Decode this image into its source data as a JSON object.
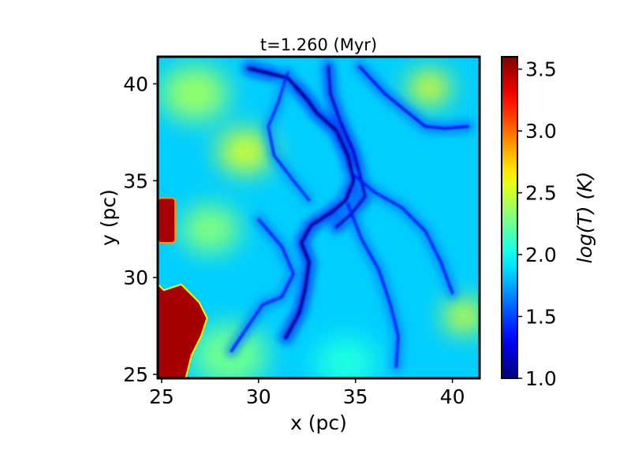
{
  "chart_data": {
    "type": "heatmap",
    "title": "t=1.260 (Myr)",
    "xlabel": "x (pc)",
    "ylabel": "y (pc)",
    "xlim": [
      24.8,
      41.4
    ],
    "ylim": [
      24.8,
      41.4
    ],
    "x_ticks": [
      25,
      30,
      35,
      40
    ],
    "y_ticks": [
      25,
      30,
      35,
      40
    ],
    "colorbar": {
      "label": "log(T) (K)",
      "range": [
        1.0,
        3.6
      ],
      "ticks": [
        1.0,
        1.5,
        2.0,
        2.5,
        3.0,
        3.5
      ],
      "tick_labels": [
        "1.0",
        "1.5",
        "2.0",
        "2.5",
        "3.0",
        "3.5"
      ],
      "colormap": "jet"
    },
    "features": {
      "background_log_t": 1.85,
      "hot_region": {
        "log_t": 3.5,
        "x": [
          24.8,
          27.3
        ],
        "y": [
          24.8,
          29.6
        ]
      },
      "hot_edge": {
        "log_t": 3.5,
        "x": [
          24.8,
          25.7
        ],
        "y": [
          31.8,
          34.1
        ]
      },
      "warm_patches": [
        {
          "x": 29.3,
          "y": 36.5,
          "r": 1.3,
          "log_t": 2.5
        },
        {
          "x": 26.7,
          "y": 39.5,
          "r": 1.6,
          "log_t": 2.35
        },
        {
          "x": 38.8,
          "y": 39.8,
          "r": 1.0,
          "log_t": 2.55
        },
        {
          "x": 40.6,
          "y": 28.0,
          "r": 1.0,
          "log_t": 2.5
        },
        {
          "x": 27.5,
          "y": 32.5,
          "r": 1.4,
          "log_t": 2.3
        },
        {
          "x": 28.5,
          "y": 26.0,
          "r": 1.8,
          "log_t": 2.25
        },
        {
          "x": 34.5,
          "y": 25.6,
          "r": 1.5,
          "log_t": 2.05
        }
      ],
      "filaments": [
        {
          "log_t": 1.05,
          "points": [
            [
              29.5,
              40.8
            ],
            [
              31.5,
              40.3
            ],
            [
              32.5,
              39.2
            ],
            [
              33.0,
              38.5
            ],
            [
              34.0,
              37.6
            ],
            [
              34.6,
              36.3
            ],
            [
              34.9,
              35.0
            ],
            [
              34.5,
              34.0
            ],
            [
              33.8,
              33.4
            ],
            [
              32.7,
              32.7
            ],
            [
              32.2,
              31.8
            ],
            [
              32.6,
              30.8
            ],
            [
              32.4,
              29.4
            ],
            [
              32.1,
              28.2
            ],
            [
              31.4,
              26.9
            ]
          ]
        },
        {
          "log_t": 1.15,
          "points": [
            [
              33.6,
              40.9
            ],
            [
              33.7,
              39.5
            ],
            [
              34.2,
              38.1
            ],
            [
              34.9,
              36.5
            ],
            [
              35.2,
              35.4
            ],
            [
              35.5,
              34.2
            ],
            [
              34.8,
              33.3
            ],
            [
              34.0,
              32.6
            ]
          ]
        },
        {
          "log_t": 1.3,
          "points": [
            [
              35.2,
              40.9
            ],
            [
              36.5,
              39.5
            ],
            [
              37.6,
              38.6
            ],
            [
              38.6,
              37.8
            ],
            [
              39.6,
              37.7
            ],
            [
              40.8,
              37.8
            ]
          ]
        },
        {
          "log_t": 1.35,
          "points": [
            [
              30.0,
              33.0
            ],
            [
              31.2,
              31.6
            ],
            [
              31.8,
              30.2
            ],
            [
              31.2,
              29.0
            ],
            [
              30.2,
              28.6
            ],
            [
              29.4,
              27.4
            ],
            [
              28.6,
              26.2
            ]
          ]
        },
        {
          "log_t": 1.35,
          "points": [
            [
              34.9,
              35.3
            ],
            [
              36.0,
              34.4
            ],
            [
              37.4,
              33.6
            ],
            [
              38.6,
              32.4
            ],
            [
              39.4,
              30.8
            ],
            [
              40.0,
              29.2
            ]
          ]
        },
        {
          "log_t": 1.35,
          "points": [
            [
              34.6,
              33.8
            ],
            [
              35.3,
              32.0
            ],
            [
              36.2,
              30.4
            ],
            [
              36.8,
              28.6
            ],
            [
              37.2,
              27.0
            ],
            [
              37.1,
              25.4
            ]
          ]
        },
        {
          "log_t": 1.4,
          "points": [
            [
              31.5,
              40.6
            ],
            [
              31.0,
              39.0
            ],
            [
              30.5,
              37.8
            ],
            [
              30.8,
              36.3
            ],
            [
              31.8,
              35.0
            ],
            [
              32.6,
              34.0
            ]
          ]
        }
      ]
    }
  }
}
